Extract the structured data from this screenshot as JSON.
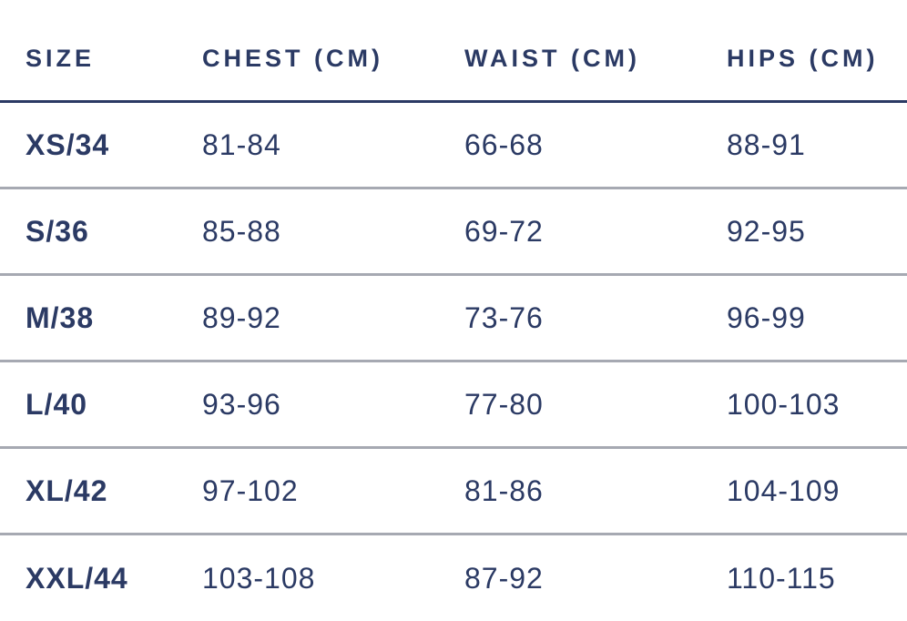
{
  "colors": {
    "text_navy": "#2b3a64",
    "header_rule_navy": "#2b3a64",
    "row_rule_gray": "#a6a9b2",
    "background": "#ffffff"
  },
  "chart_data": {
    "type": "table",
    "columns": [
      "SIZE",
      "CHEST (CM)",
      "WAIST (CM)",
      "HIPS (CM)"
    ],
    "rows": [
      [
        "XS/34",
        "81-84",
        "66-68",
        "88-91"
      ],
      [
        "S/36",
        "85-88",
        "69-72",
        "92-95"
      ],
      [
        "M/38",
        "89-92",
        "73-76",
        "96-99"
      ],
      [
        "L/40",
        "93-96",
        "77-80",
        "100-103"
      ],
      [
        "XL/42",
        "97-102",
        "81-86",
        "104-109"
      ],
      [
        "XXL/44",
        "103-108",
        "87-92",
        "110-115"
      ]
    ]
  }
}
